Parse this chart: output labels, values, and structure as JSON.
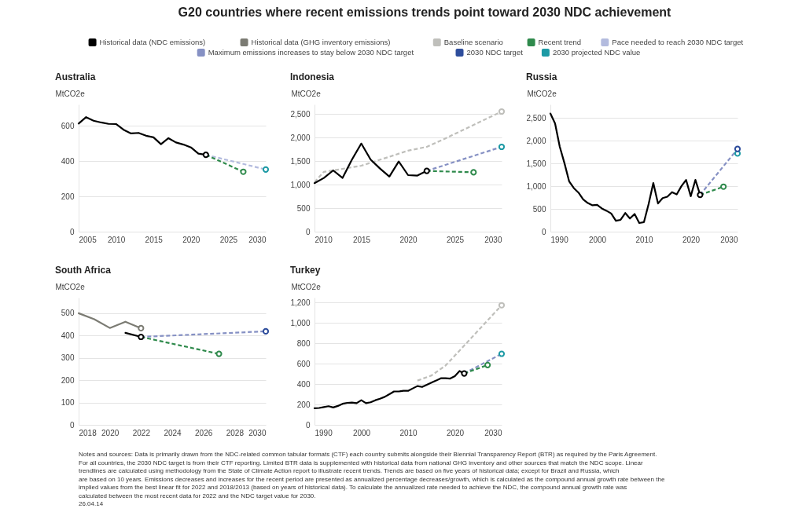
{
  "chart_data": [
    {
      "type": "other",
      "title": "G20 countries where recent emissions trends point toward 2030 NDC achievement",
      "legend": "top",
      "series": [
        {
          "name": "Historical data (NDC emissions)",
          "color": "#000000"
        },
        {
          "name": "Historical data (GHG inventory emissions)",
          "color": "#7b7b73"
        },
        {
          "name": "Baseline scenario",
          "color": "#bfbfbb"
        },
        {
          "name": "Recent trend",
          "color": "#2f8a4c"
        },
        {
          "name": "Pace needed to reach 2030 NDC target",
          "color": "#b3bbde"
        },
        {
          "name": "Maximum emissions increases to stay below 2030 NDC target",
          "color": "#8691c4"
        },
        {
          "name": "2030 NDC target",
          "color": "#2e4d9c"
        },
        {
          "name": "2030 projected NDC value",
          "color": "#1d9aa5"
        }
      ],
      "annotations": [
        "Notes and sources: Data is primarily drawn from the NDC-related common tabular formats (CTF) each country submits alongside their Biennial Transparency Report (BTR) as required by the Paris Agreement. For all countries, the 2030 NDC target is from their CTF reporting. Limited BTR data is supplemented with historical data from national GHG inventory and other sources that match the NDC scope. Linear trendlines are calculated using methodology from the State of Climate Action report to illustrate recent trends. Trends are based on five years of historical data; except for Brazil and Russia, which are based on 10 years. Emissions decreases and increases for the recent period are presented as annualized percentage decreases/growth, which is calculated as the compound annual growth rate between the implied values from the best linear fit for 2022 and 2018/2013 (based on years of historical data). To calculate the annualized rate needed to achieve the NDC, the compound annual growth rate was calculated between the most recent data for 2022 and the NDC target value for 2030.",
        "26.04.14"
      ]
    },
    {
      "type": "line",
      "title": "Australia",
      "ylabel": "MtCO2e",
      "xlim": [
        2005,
        2030
      ],
      "xticks": [
        2005,
        2010,
        2015,
        2020,
        2025,
        2030
      ],
      "ylim": [
        0,
        720
      ],
      "yticks": [
        0,
        200,
        400,
        600
      ],
      "grid": "y",
      "series": [
        {
          "color": "#000000",
          "x": [
            2005,
            2006,
            2007,
            2008,
            2009,
            2010,
            2011,
            2012,
            2013,
            2014,
            2015,
            2016,
            2017,
            2018,
            2019,
            2020,
            2021,
            2022
          ],
          "values": [
            612,
            648,
            628,
            618,
            610,
            609,
            577,
            556,
            559,
            543,
            534,
            495,
            529,
            505,
            493,
            477,
            442,
            435
          ]
        },
        {
          "color": "#b3bbde",
          "line_style": "dashed",
          "x": [
            2022,
            2030
          ],
          "values": [
            435,
            352
          ]
        },
        {
          "color": "#2f8a4c",
          "line_style": "dashed",
          "x": [
            2022,
            2027
          ],
          "values": [
            435,
            339
          ]
        },
        {
          "type": "scatter",
          "marker": "circle",
          "color": "#000000",
          "x": [
            2022
          ],
          "values": [
            435
          ]
        },
        {
          "type": "scatter",
          "marker": "circle",
          "color": "#2f8a4c",
          "x": [
            2027
          ],
          "values": [
            339
          ]
        },
        {
          "type": "scatter",
          "marker": "circle",
          "color": "#1d9aa5",
          "x": [
            2030
          ],
          "values": [
            352
          ]
        }
      ]
    },
    {
      "type": "line",
      "title": "Indonesia",
      "ylabel": "MtCO2e",
      "xlim": [
        2010,
        2030
      ],
      "xticks": [
        2010,
        2015,
        2020,
        2025,
        2030
      ],
      "ylim": [
        0,
        2700
      ],
      "yticks": [
        0,
        500,
        {
          "value": 1000,
          "label": "1,000"
        },
        {
          "value": 1500,
          "label": "1,500"
        },
        {
          "value": 2000,
          "label": "2,000"
        },
        {
          "value": 2500,
          "label": "2,500"
        }
      ],
      "grid": "y",
      "series": [
        {
          "color": "#bfbfbb",
          "line_style": "dashed",
          "x": [
            2010,
            2011,
            2012,
            2015,
            2018,
            2020,
            2022,
            2024,
            2026,
            2028,
            2030
          ],
          "values": [
            1050,
            1270,
            1300,
            1400,
            1590,
            1720,
            1800,
            1980,
            2170,
            2360,
            2550
          ]
        },
        {
          "color": "#000000",
          "x": [
            2010,
            2011,
            2012,
            2013,
            2014,
            2015,
            2016,
            2017,
            2018,
            2019,
            2020,
            2021,
            2022
          ],
          "values": [
            1030,
            1140,
            1300,
            1140,
            1530,
            1870,
            1530,
            1340,
            1170,
            1490,
            1200,
            1190,
            1290
          ]
        },
        {
          "color": "#8691c4",
          "line_style": "dashed",
          "x": [
            2022,
            2030
          ],
          "values": [
            1290,
            1800
          ]
        },
        {
          "color": "#2f8a4c",
          "line_style": "dashed",
          "x": [
            2022,
            2027
          ],
          "values": [
            1290,
            1260
          ]
        },
        {
          "type": "scatter",
          "marker": "circle",
          "color": "#bfbfbb",
          "x": [
            2030
          ],
          "values": [
            2550
          ]
        },
        {
          "type": "scatter",
          "marker": "circle",
          "color": "#000000",
          "x": [
            2022
          ],
          "values": [
            1290
          ]
        },
        {
          "type": "scatter",
          "marker": "circle",
          "color": "#2f8a4c",
          "x": [
            2027
          ],
          "values": [
            1260
          ]
        },
        {
          "type": "scatter",
          "marker": "circle",
          "color": "#1d9aa5",
          "x": [
            2030
          ],
          "values": [
            1800
          ]
        }
      ]
    },
    {
      "type": "line",
      "title": "Russia",
      "ylabel": "MtCO2e",
      "xlim": [
        1990,
        2030
      ],
      "xticks": [
        1990,
        2000,
        2010,
        2020,
        2030
      ],
      "ylim": [
        0,
        2800
      ],
      "yticks": [
        0,
        500,
        {
          "value": 1000,
          "label": "1,000"
        },
        {
          "value": 1500,
          "label": "1,500"
        },
        {
          "value": 2000,
          "label": "2,000"
        },
        {
          "value": 2500,
          "label": "2,500"
        }
      ],
      "grid": "y",
      "series": [
        {
          "color": "#000000",
          "x": [
            1990,
            1991,
            1992,
            1993,
            1994,
            1995,
            1996,
            1997,
            1998,
            1999,
            2000,
            2001,
            2002,
            2003,
            2004,
            2005,
            2006,
            2007,
            2008,
            2009,
            2010,
            2011,
            2012,
            2013,
            2014,
            2015,
            2016,
            2017,
            2018,
            2019,
            2020,
            2021,
            2022
          ],
          "values": [
            2600,
            2380,
            1870,
            1510,
            1110,
            960,
            860,
            710,
            630,
            580,
            590,
            510,
            460,
            400,
            240,
            260,
            410,
            290,
            390,
            190,
            210,
            610,
            1070,
            620,
            740,
            770,
            870,
            820,
            1000,
            1140,
            780,
            1140,
            810
          ]
        },
        {
          "color": "#8691c4",
          "line_style": "dashed",
          "x": [
            2022,
            2030
          ],
          "values": [
            810,
            1820
          ]
        },
        {
          "color": "#2f8a4c",
          "line_style": "dashed",
          "x": [
            2022,
            2027
          ],
          "values": [
            810,
            990
          ]
        },
        {
          "type": "scatter",
          "marker": "circle",
          "color": "#000000",
          "x": [
            2022
          ],
          "values": [
            810
          ]
        },
        {
          "type": "scatter",
          "marker": "circle",
          "color": "#2f8a4c",
          "x": [
            2027
          ],
          "values": [
            990
          ]
        },
        {
          "type": "scatter",
          "marker": "circle",
          "color": "#1d9aa5",
          "x": [
            2030
          ],
          "values": [
            1720
          ]
        },
        {
          "type": "scatter",
          "marker": "circle",
          "color": "#2e4d9c",
          "x": [
            2030
          ],
          "values": [
            1820
          ]
        }
      ]
    },
    {
      "type": "line",
      "title": "South Africa",
      "ylabel": "MtCO2e",
      "xlim": [
        2018,
        2030
      ],
      "xticks": [
        2018,
        2020,
        2022,
        2024,
        2026,
        2028,
        2030
      ],
      "ylim": [
        0,
        570
      ],
      "yticks": [
        0,
        100,
        200,
        300,
        400,
        500
      ],
      "grid": "y",
      "series": [
        {
          "color": "#7b7b73",
          "x": [
            2018,
            2019,
            2020,
            2021,
            2022
          ],
          "values": [
            500,
            473,
            434,
            462,
            433
          ]
        },
        {
          "color": "#000000",
          "x": [
            2021,
            2022
          ],
          "values": [
            412,
            394
          ]
        },
        {
          "color": "#8691c4",
          "line_style": "dashed",
          "x": [
            2022,
            2030
          ],
          "values": [
            394,
            419
          ]
        },
        {
          "color": "#2f8a4c",
          "line_style": "dashed",
          "x": [
            2022,
            2027
          ],
          "values": [
            394,
            318
          ]
        },
        {
          "type": "scatter",
          "marker": "circle",
          "color": "#7b7b73",
          "x": [
            2022
          ],
          "values": [
            433
          ]
        },
        {
          "type": "scatter",
          "marker": "circle",
          "color": "#000000",
          "x": [
            2022
          ],
          "values": [
            394
          ]
        },
        {
          "type": "scatter",
          "marker": "circle",
          "color": "#2f8a4c",
          "x": [
            2027
          ],
          "values": [
            318
          ]
        },
        {
          "type": "scatter",
          "marker": "circle",
          "color": "#2e4d9c",
          "x": [
            2030
          ],
          "values": [
            419
          ]
        }
      ]
    },
    {
      "type": "line",
      "title": "Turkey",
      "ylabel": "MtCO2e",
      "xlim": [
        1990,
        2030
      ],
      "xticks": [
        1990,
        2000,
        2010,
        2020,
        2030
      ],
      "ylim": [
        0,
        1250
      ],
      "yticks": [
        0,
        200,
        400,
        600,
        800,
        {
          "value": 1000,
          "label": "1,000"
        },
        {
          "value": 1200,
          "label": "1,200"
        }
      ],
      "grid": "y",
      "series": [
        {
          "color": "#bfbfbb",
          "line_style": "dashed",
          "x": [
            2012,
            2015,
            2018,
            2020,
            2022,
            2024,
            2026,
            2028,
            2030
          ],
          "values": [
            435,
            485,
            582,
            680,
            779,
            878,
            977,
            1076,
            1175
          ]
        },
        {
          "color": "#000000",
          "x": [
            1990,
            1991,
            1992,
            1993,
            1994,
            1995,
            1996,
            1997,
            1998,
            1999,
            2000,
            2001,
            2002,
            2003,
            2004,
            2005,
            2006,
            2007,
            2008,
            2009,
            2010,
            2011,
            2012,
            2013,
            2014,
            2015,
            2016,
            2017,
            2018,
            2019,
            2020,
            2021,
            2022
          ],
          "values": [
            163,
            166,
            174,
            183,
            171,
            186,
            207,
            216,
            219,
            213,
            242,
            213,
            222,
            242,
            257,
            275,
            301,
            328,
            328,
            334,
            334,
            358,
            381,
            372,
            393,
            414,
            435,
            458,
            458,
            455,
            479,
            529,
            505
          ]
        },
        {
          "color": "#8691c4",
          "line_style": "dashed",
          "x": [
            2022,
            2030
          ],
          "values": [
            505,
            698
          ]
        },
        {
          "color": "#2f8a4c",
          "line_style": "dashed",
          "x": [
            2022,
            2027
          ],
          "values": [
            505,
            588
          ]
        },
        {
          "type": "scatter",
          "marker": "circle",
          "color": "#bfbfbb",
          "x": [
            2030
          ],
          "values": [
            1175
          ]
        },
        {
          "type": "scatter",
          "marker": "circle",
          "color": "#000000",
          "x": [
            2022
          ],
          "values": [
            505
          ]
        },
        {
          "type": "scatter",
          "marker": "circle",
          "color": "#2f8a4c",
          "x": [
            2027
          ],
          "values": [
            588
          ]
        },
        {
          "type": "scatter",
          "marker": "circle",
          "color": "#1d9aa5",
          "x": [
            2030
          ],
          "values": [
            698
          ]
        }
      ]
    }
  ]
}
